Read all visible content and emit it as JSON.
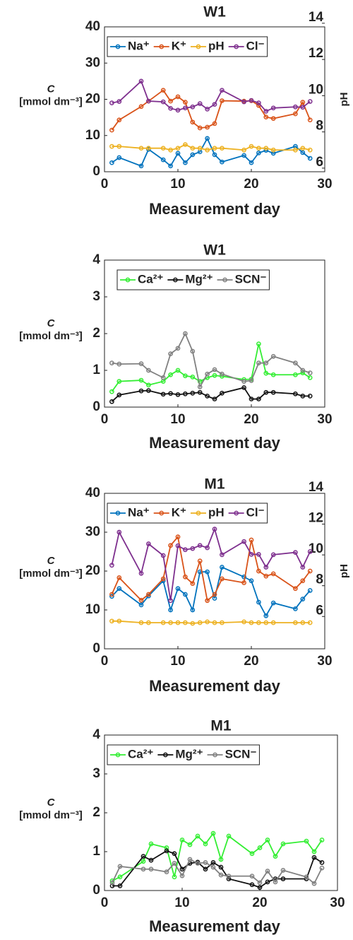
{
  "chart_data": [
    {
      "type": "line",
      "title": "W1",
      "xlabel": "Measurement day",
      "ylabel": "C",
      "yunit": "[mmol dm⁻³]",
      "y2label": "pH",
      "x": [
        1,
        2,
        5,
        6,
        8,
        9,
        10,
        11,
        12,
        13,
        14,
        15,
        16,
        19,
        20,
        21,
        22,
        23,
        26,
        27,
        28
      ],
      "xlim": [
        0,
        30
      ],
      "xticks": [
        0,
        10,
        20,
        30
      ],
      "ylim": [
        0,
        40
      ],
      "yticks": [
        0,
        10,
        20,
        30,
        40
      ],
      "y2lim": [
        5.8,
        13.8
      ],
      "y2ticks": [
        6,
        8,
        10,
        12,
        14
      ],
      "legend": "top-left",
      "series": [
        {
          "name": "Na⁺",
          "color": "#0072bd",
          "values": [
            2.5,
            3.9,
            1.6,
            6.2,
            3.3,
            1.6,
            5.1,
            2.5,
            4.7,
            5.5,
            9.2,
            4.7,
            2.7,
            4.5,
            2.5,
            5.2,
            5.9,
            5.1,
            7.0,
            5.3,
            3.7
          ]
        },
        {
          "name": "K⁺",
          "color": "#d95319",
          "values": [
            11.5,
            14.3,
            18,
            19.5,
            22.5,
            19.5,
            20.7,
            19.2,
            13.7,
            12.1,
            12.3,
            13.3,
            19.6,
            19.5,
            19.6,
            18.3,
            15.1,
            14.7,
            16,
            19.2,
            14.3
          ]
        },
        {
          "name": "pH",
          "color": "#edb120",
          "axis": "y2",
          "values": [
            7.2,
            7.2,
            7.1,
            7.1,
            7.1,
            7.0,
            7.1,
            7.3,
            7.1,
            7.1,
            7.0,
            7.1,
            7.1,
            7.0,
            7.2,
            7.1,
            7.1,
            7.0,
            7.0,
            7.1,
            7.0
          ]
        },
        {
          "name": "Cl⁻",
          "color": "#7e2f8e",
          "values": [
            19,
            19.4,
            25,
            19.5,
            19.3,
            17.5,
            17,
            17.6,
            17.9,
            18.8,
            17.3,
            18.6,
            22.5,
            19.3,
            19.7,
            19,
            16.7,
            17.6,
            17.9,
            17.8,
            19.4
          ]
        }
      ]
    },
    {
      "type": "line",
      "title": "W1",
      "xlabel": "Measurement day",
      "ylabel": "C",
      "yunit": "[mmol dm⁻³]",
      "x": [
        1,
        2,
        5,
        6,
        8,
        9,
        10,
        11,
        12,
        13,
        14,
        15,
        16,
        19,
        20,
        21,
        22,
        23,
        26,
        27,
        28
      ],
      "xlim": [
        0,
        30
      ],
      "xticks": [
        0,
        10,
        20,
        30
      ],
      "ylim": [
        0,
        4
      ],
      "yticks": [
        0,
        1,
        2,
        3,
        4
      ],
      "legend": "top-center",
      "series": [
        {
          "name": "Ca²⁺",
          "color": "#33ee33",
          "values": [
            0.42,
            0.7,
            0.73,
            0.6,
            0.7,
            0.88,
            1.0,
            0.85,
            0.82,
            0.7,
            0.8,
            0.86,
            0.84,
            0.75,
            0.76,
            1.72,
            0.92,
            0.88,
            0.88,
            0.93,
            0.8
          ]
        },
        {
          "name": "Mg²⁺",
          "color": "#111111",
          "values": [
            0.15,
            0.33,
            0.44,
            0.45,
            0.35,
            0.37,
            0.34,
            0.36,
            0.38,
            0.4,
            0.3,
            0.22,
            0.38,
            0.53,
            0.22,
            0.22,
            0.4,
            0.4,
            0.36,
            0.3,
            0.3
          ]
        },
        {
          "name": "SCN⁻",
          "color": "#808080",
          "values": [
            1.2,
            1.17,
            1.18,
            1.0,
            0.8,
            1.45,
            1.6,
            2.0,
            1.52,
            0.55,
            0.9,
            1.02,
            0.9,
            0.7,
            0.72,
            1.2,
            1.2,
            1.38,
            1.2,
            1.0,
            0.93
          ]
        }
      ]
    },
    {
      "type": "line",
      "title": "M1",
      "xlabel": "Measurement day",
      "ylabel": "C",
      "yunit": "[mmol dm⁻³]",
      "y2label": "pH",
      "x": [
        1,
        2,
        5,
        6,
        8,
        9,
        10,
        11,
        12,
        13,
        14,
        15,
        16,
        19,
        20,
        21,
        22,
        23,
        26,
        27,
        28
      ],
      "xlim": [
        0,
        30
      ],
      "xticks": [
        0,
        10,
        20,
        30
      ],
      "ylim": [
        0,
        40
      ],
      "yticks": [
        0,
        10,
        20,
        30,
        40
      ],
      "y2lim": [
        3.9,
        14
      ],
      "y2ticks": [
        6,
        8,
        10,
        12,
        14
      ],
      "legend": "top-left",
      "series": [
        {
          "name": "Na⁺",
          "color": "#0072bd",
          "values": [
            13.5,
            15.5,
            11.3,
            13.6,
            17.5,
            10,
            15.5,
            14,
            10,
            19.8,
            19.8,
            13,
            21,
            18.5,
            17.5,
            12,
            8.5,
            11.8,
            10.3,
            12.8,
            15
          ]
        },
        {
          "name": "K⁺",
          "color": "#d95319",
          "values": [
            14,
            18.3,
            12.5,
            14,
            18,
            26.6,
            28.8,
            18.5,
            16.8,
            22.6,
            12.4,
            14,
            18,
            17,
            28,
            20,
            18.7,
            19.3,
            15.5,
            17.5,
            20
          ]
        },
        {
          "name": "pH",
          "color": "#edb120",
          "axis": "y2",
          "values": [
            5.7,
            5.7,
            5.6,
            5.6,
            5.6,
            5.6,
            5.6,
            5.6,
            5.55,
            5.6,
            5.65,
            5.6,
            5.6,
            5.65,
            5.6,
            5.6,
            5.6,
            5.6,
            5.6,
            5.6,
            5.6
          ]
        },
        {
          "name": "Cl⁻",
          "color": "#7e2f8e",
          "values": [
            21.5,
            30,
            19.4,
            27,
            24,
            12.4,
            26.5,
            25.5,
            25.8,
            26.6,
            26,
            30.8,
            24.2,
            27.6,
            24.3,
            24.3,
            21,
            24.2,
            24.8,
            21,
            25
          ]
        }
      ]
    },
    {
      "type": "line",
      "title": "M1",
      "xlabel": "Measurement day",
      "ylabel": "C",
      "yunit": "[mmol dm⁻³]",
      "x": [
        1,
        2,
        5,
        6,
        8,
        9,
        10,
        11,
        12,
        13,
        14,
        15,
        16,
        19,
        20,
        21,
        22,
        23,
        26,
        27,
        28
      ],
      "xlim": [
        0,
        30
      ],
      "xticks": [
        0,
        10,
        20,
        30
      ],
      "ylim": [
        0,
        4
      ],
      "yticks": [
        0,
        1,
        2,
        3,
        4
      ],
      "legend": "top-left",
      "series": [
        {
          "name": "Ca²⁺",
          "color": "#33ee33",
          "values": [
            0.25,
            0.35,
            0.75,
            1.2,
            1.1,
            0.35,
            1.3,
            1.18,
            1.4,
            1.2,
            1.47,
            0.8,
            1.4,
            0.95,
            1.1,
            1.3,
            0.88,
            1.2,
            1.27,
            1.0,
            1.3
          ]
        },
        {
          "name": "Mg²⁺",
          "color": "#111111",
          "values": [
            0.12,
            0.12,
            0.88,
            0.78,
            1.02,
            0.95,
            0.55,
            0.7,
            0.73,
            0.55,
            0.72,
            0.6,
            0.3,
            0.15,
            0.08,
            0.22,
            0.3,
            0.3,
            0.3,
            0.85,
            0.72
          ]
        },
        {
          "name": "SCN⁻",
          "color": "#808080",
          "values": [
            0.2,
            0.62,
            0.55,
            0.55,
            0.48,
            0.7,
            0.38,
            0.8,
            0.7,
            0.72,
            0.6,
            0.4,
            0.37,
            0.37,
            0.2,
            0.5,
            0.22,
            0.52,
            0.35,
            0.18,
            0.58
          ]
        }
      ]
    }
  ]
}
